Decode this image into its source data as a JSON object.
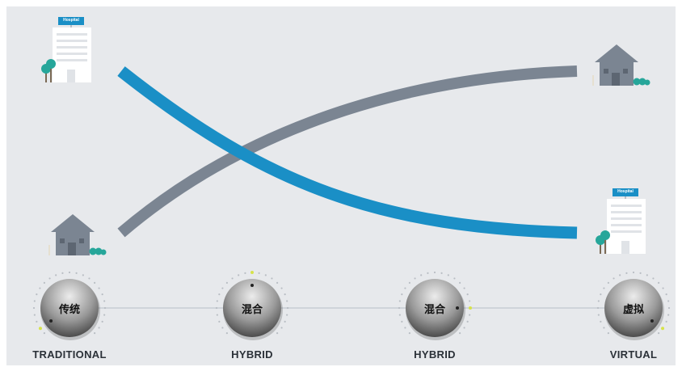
{
  "hospital_sign": "Hospital",
  "dials": [
    {
      "cn": "传统",
      "label": "TRADITIONAL"
    },
    {
      "cn": "混合",
      "label": "HYBRID"
    },
    {
      "cn": "混合",
      "label": "HYBRID"
    },
    {
      "cn": "虚拟",
      "label": "VIRTUAL"
    }
  ],
  "colors": {
    "background": "#e7e9ec",
    "blue_curve": "#1a8fc6",
    "gray_curve": "#7b8592",
    "house": "#7b8592",
    "tree": "#26a69a",
    "indicator": "#d7e34a"
  },
  "icons": {
    "left_top": "hospital-icon",
    "left_bottom": "house-icon",
    "right_top": "house-icon",
    "right_bottom": "hospital-icon"
  }
}
